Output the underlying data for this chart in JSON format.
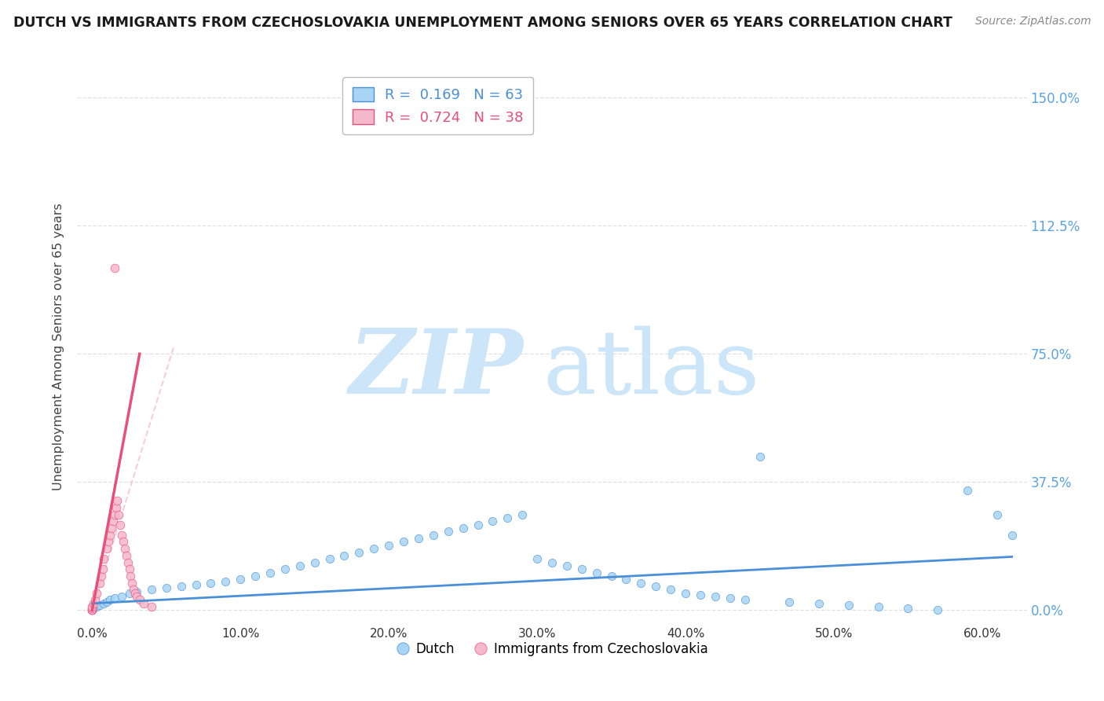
{
  "title": "DUTCH VS IMMIGRANTS FROM CZECHOSLOVAKIA UNEMPLOYMENT AMONG SENIORS OVER 65 YEARS CORRELATION CHART",
  "source": "Source: ZipAtlas.com",
  "ylabel": "Unemployment Among Seniors over 65 years",
  "ytick_values": [
    0.0,
    37.5,
    75.0,
    112.5,
    150.0
  ],
  "xtick_values": [
    0.0,
    10.0,
    20.0,
    30.0,
    40.0,
    50.0,
    60.0
  ],
  "xlim": [
    -1.0,
    63.0
  ],
  "ylim": [
    -4.0,
    158.0
  ],
  "R_dutch": 0.169,
  "N_dutch": 63,
  "R_czech": 0.724,
  "N_czech": 38,
  "dutch_color": "#a8d4f5",
  "czech_color": "#f5b8cc",
  "dutch_line_color": "#4a90d9",
  "czech_line_color": "#e8507a",
  "czech_dash_color": "#f5b8cc",
  "background_color": "#ffffff",
  "watermark_zip_color": "#cce5f8",
  "watermark_atlas_color": "#cce5f8",
  "grid_color": "#e0e0e0",
  "right_axis_color": "#5ba3e0",
  "title_color": "#1a1a1a",
  "source_color": "#888888",
  "ylabel_color": "#444444",
  "dutch_scatter_x": [
    0.1,
    0.3,
    0.5,
    0.8,
    1.0,
    1.2,
    1.5,
    2.0,
    2.5,
    3.0,
    4.0,
    5.0,
    6.0,
    7.0,
    8.0,
    9.0,
    10.0,
    11.0,
    12.0,
    13.0,
    14.0,
    15.0,
    16.0,
    17.0,
    18.0,
    19.0,
    20.0,
    21.0,
    22.0,
    23.0,
    24.0,
    25.0,
    26.0,
    27.0,
    28.0,
    29.0,
    30.0,
    31.0,
    32.0,
    33.0,
    34.0,
    35.0,
    36.0,
    37.0,
    38.0,
    39.0,
    40.0,
    41.0,
    42.0,
    43.0,
    44.0,
    45.0,
    47.0,
    49.0,
    51.0,
    53.0,
    55.0,
    57.0,
    59.0,
    61.0,
    62.0,
    0.0,
    0.0
  ],
  "dutch_scatter_y": [
    0.5,
    1.0,
    1.5,
    2.0,
    2.5,
    3.0,
    3.5,
    4.0,
    5.0,
    5.5,
    6.0,
    6.5,
    7.0,
    7.5,
    8.0,
    8.5,
    9.0,
    10.0,
    11.0,
    12.0,
    13.0,
    14.0,
    15.0,
    16.0,
    17.0,
    18.0,
    19.0,
    20.0,
    21.0,
    22.0,
    23.0,
    24.0,
    25.0,
    26.0,
    27.0,
    28.0,
    15.0,
    14.0,
    13.0,
    12.0,
    11.0,
    10.0,
    9.0,
    8.0,
    7.0,
    6.0,
    5.0,
    4.5,
    4.0,
    3.5,
    3.0,
    45.0,
    2.5,
    2.0,
    1.5,
    1.0,
    0.5,
    0.0,
    35.0,
    28.0,
    22.0,
    0.0,
    0.0
  ],
  "czech_scatter_x": [
    0.0,
    0.0,
    0.0,
    0.0,
    0.0,
    0.0,
    0.1,
    0.2,
    0.3,
    0.5,
    0.6,
    0.7,
    0.8,
    1.0,
    1.1,
    1.2,
    1.3,
    1.4,
    1.5,
    1.5,
    1.6,
    1.7,
    1.8,
    1.9,
    2.0,
    2.1,
    2.2,
    2.3,
    2.4,
    2.5,
    2.6,
    2.7,
    2.8,
    2.9,
    3.0,
    3.2,
    3.5,
    4.0
  ],
  "czech_scatter_y": [
    0.0,
    0.0,
    0.0,
    0.0,
    0.5,
    1.0,
    2.0,
    3.0,
    5.0,
    8.0,
    10.0,
    12.0,
    15.0,
    18.0,
    20.0,
    22.0,
    24.0,
    26.0,
    28.0,
    100.0,
    30.0,
    32.0,
    28.0,
    25.0,
    22.0,
    20.0,
    18.0,
    16.0,
    14.0,
    12.0,
    10.0,
    8.0,
    6.0,
    5.0,
    4.0,
    3.0,
    2.0,
    1.0
  ]
}
